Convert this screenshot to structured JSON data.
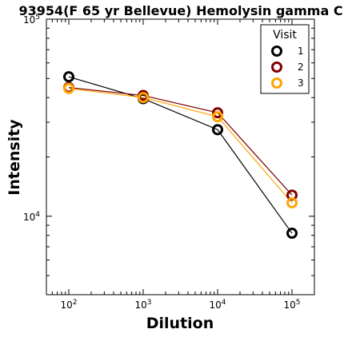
{
  "chart_data": {
    "type": "line",
    "title": "93954(F 65 yr Bellevue) Hemolysin gamma C",
    "xlabel": "Dilution",
    "ylabel": "Intensity",
    "x_scale": "log",
    "y_scale": "log",
    "xlim": [
      50,
      200000
    ],
    "ylim": [
      4000,
      100000
    ],
    "x_ticks": [
      {
        "value": 100,
        "base": "10",
        "exp": "2"
      },
      {
        "value": 1000,
        "base": "10",
        "exp": "3"
      },
      {
        "value": 10000,
        "base": "10",
        "exp": "4"
      },
      {
        "value": 100000,
        "base": "10",
        "exp": "5"
      }
    ],
    "y_ticks": [
      {
        "value": 10000,
        "base": "10",
        "exp": "4"
      },
      {
        "value": 100000,
        "base": "10",
        "exp": "5"
      }
    ],
    "x": [
      100,
      1000,
      10000,
      100000
    ],
    "series": [
      {
        "name": "1",
        "values": [
          51000,
          39500,
          27500,
          8200
        ],
        "color": "#000000"
      },
      {
        "name": "2",
        "values": [
          45000,
          41000,
          33500,
          12800
        ],
        "color": "#800000"
      },
      {
        "name": "3",
        "values": [
          44500,
          40000,
          32000,
          11700
        ],
        "color": "#FFA500"
      }
    ],
    "legend": {
      "title": "Visit",
      "position": "top-right"
    },
    "grid": false
  }
}
